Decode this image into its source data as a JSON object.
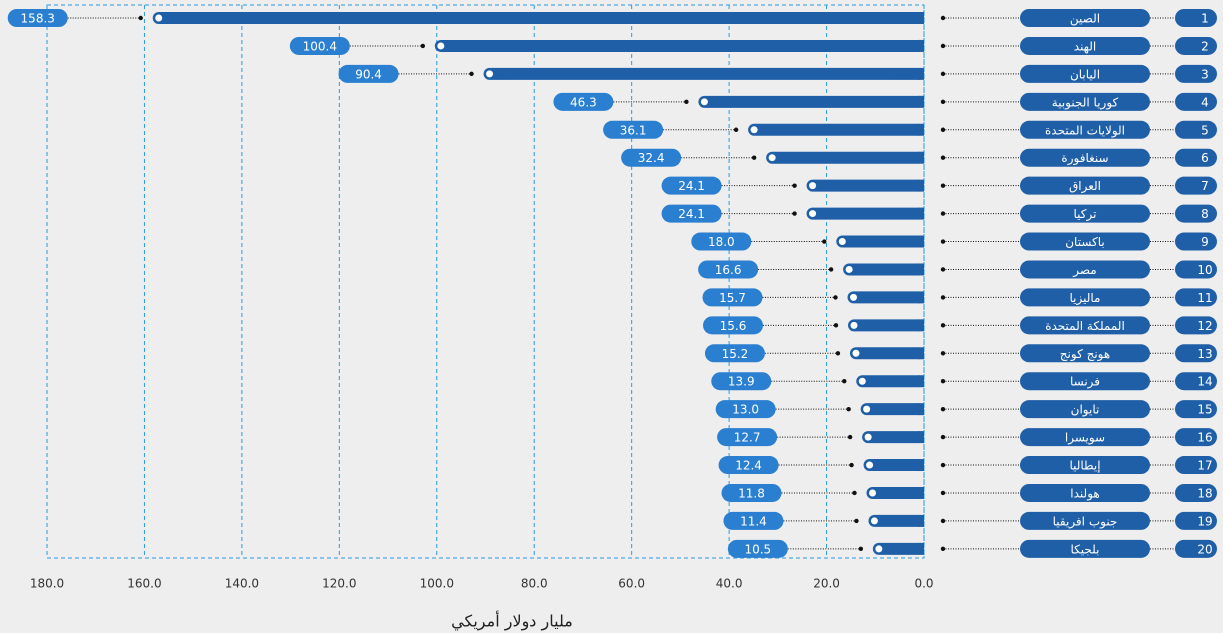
{
  "chart_data": {
    "type": "bar",
    "orientation": "horizontal",
    "reversed": true,
    "x_label": "مليار دولار أمريكي",
    "ranks": [
      1,
      2,
      3,
      4,
      5,
      6,
      7,
      8,
      9,
      10,
      11,
      12,
      13,
      14,
      15,
      16,
      17,
      18,
      19,
      20
    ],
    "categories": [
      "الصين",
      "الهند",
      "اليابان",
      "كوريا الجنوبية",
      "الولايات المتحدة",
      "سنغافورة",
      "العراق",
      "تركيا",
      "باكستان",
      "مصر",
      "ماليزيا",
      "المملكة المتحدة",
      "هونج كونج",
      "فرنسا",
      "تايوان",
      "سويسرا",
      "إيطاليا",
      "هولندا",
      "جنوب افريقيا",
      "بلجيكا"
    ],
    "values": [
      158.3,
      100.4,
      90.4,
      46.3,
      36.1,
      32.4,
      24.1,
      24.1,
      18.0,
      16.6,
      15.7,
      15.6,
      15.2,
      13.9,
      13.0,
      12.7,
      12.4,
      11.8,
      11.4,
      10.5
    ],
    "value_labels": [
      "158.3",
      "100.4",
      "90.4",
      "46.3",
      "36.1",
      "32.4",
      "24.1",
      "24.1",
      "18.0",
      "16.6",
      "15.7",
      "15.6",
      "15.2",
      "13.9",
      "13.0",
      "12.7",
      "12.4",
      "11.8",
      "11.4",
      "10.5"
    ],
    "color": "#1f5fa8",
    "label_color": "#2a7fd0",
    "xlim": [
      0,
      180
    ],
    "xticks": [
      {
        "value": 0,
        "label": "0.0"
      },
      {
        "value": 20,
        "label": "20.0"
      },
      {
        "value": 40,
        "label": "40.0"
      },
      {
        "value": 60,
        "label": "60.0"
      },
      {
        "value": 80,
        "label": "80.0"
      },
      {
        "value": 100,
        "label": "100.0"
      },
      {
        "value": 120,
        "label": "120.0"
      },
      {
        "value": 140,
        "label": "140.0"
      },
      {
        "value": 160,
        "label": "160.0"
      },
      {
        "value": 180,
        "label": "180.0"
      }
    ],
    "grid": true
  }
}
